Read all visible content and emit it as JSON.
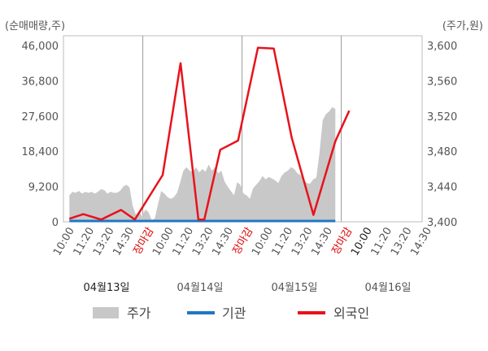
{
  "chart_data": {
    "type": "line",
    "left_unit_label": "(순매매량,주)",
    "right_unit_label": "(주가,원)",
    "left_axis": {
      "ticks": [
        "46,000",
        "36,800",
        "27,600",
        "18,400",
        "9,200",
        "0"
      ],
      "ylim": [
        0,
        46000
      ]
    },
    "right_axis": {
      "ticks": [
        "3,600",
        "3,560",
        "3,520",
        "3,480",
        "3,440",
        "3,400"
      ],
      "ylim": [
        3400,
        3600
      ]
    },
    "x_slots": [
      "10:00",
      "11:20",
      "13:20",
      "14:30",
      "장마감",
      "10:00",
      "11:20",
      "13:20",
      "14:30",
      "장마감",
      "10:00",
      "11:20",
      "13:20",
      "14:30",
      "장마감",
      "10:00",
      "11:20",
      "13:20",
      "14:30"
    ],
    "x_slot_styles": [
      "t",
      "t",
      "t",
      "t",
      "c",
      "t",
      "t",
      "t",
      "t",
      "c",
      "t",
      "t",
      "t",
      "t",
      "c",
      "b",
      "t",
      "t",
      "t"
    ],
    "dates": [
      "04월13일",
      "04월14일",
      "04월15일",
      "04월16일"
    ],
    "dates_bold": [
      true,
      false,
      false,
      false
    ],
    "grid_day_boundaries": [
      4,
      9,
      14
    ],
    "grid_x": true,
    "grid_y": false,
    "legend_position": "bottom",
    "legend": [
      "주가",
      "기관",
      "외국인"
    ],
    "colors": {
      "price_area": "#c8c8c8",
      "institution": "#1f77c4",
      "foreign": "#e8121c"
    },
    "price_series": {
      "name": "주가",
      "slot_start": 0.3,
      "slot_end": 13.7,
      "y_right": [
        3430,
        3434,
        3433,
        3435,
        3432,
        3434,
        3433,
        3434,
        3432,
        3434,
        3437,
        3436,
        3432,
        3434,
        3433,
        3433,
        3435,
        3440,
        3442,
        3439,
        3418,
        3408,
        3412,
        3406,
        3414,
        3411,
        3402,
        3404,
        3420,
        3435,
        3432,
        3428,
        3426,
        3428,
        3433,
        3445,
        3458,
        3462,
        3458,
        3457,
        3462,
        3456,
        3460,
        3457,
        3465,
        3458,
        3462,
        3455,
        3458,
        3446,
        3440,
        3435,
        3430,
        3445,
        3442,
        3432,
        3430,
        3426,
        3438,
        3442,
        3446,
        3452,
        3448,
        3451,
        3449,
        3447,
        3444,
        3452,
        3456,
        3458,
        3462,
        3460,
        3455,
        3453,
        3448,
        3444,
        3443,
        3448,
        3450,
        3478,
        3515,
        3522,
        3525,
        3530,
        3528
      ]
    },
    "institution_series": {
      "name": "기관",
      "x_slots": [
        0.3,
        13.7
      ],
      "y_left": [
        0,
        0
      ]
    },
    "foreign_series": {
      "name": "외국인",
      "x_slots": [
        0.3,
        1.0,
        1.9,
        2.9,
        3.6,
        5.0,
        5.9,
        6.8,
        7.1,
        7.9,
        8.8,
        9.8,
        10.6,
        11.5,
        12.6,
        13.7,
        14.4
      ],
      "y_left": [
        800,
        2000,
        600,
        3100,
        600,
        12200,
        41400,
        600,
        600,
        18800,
        21200,
        45400,
        45200,
        22000,
        1800,
        21000,
        29000
      ]
    }
  }
}
